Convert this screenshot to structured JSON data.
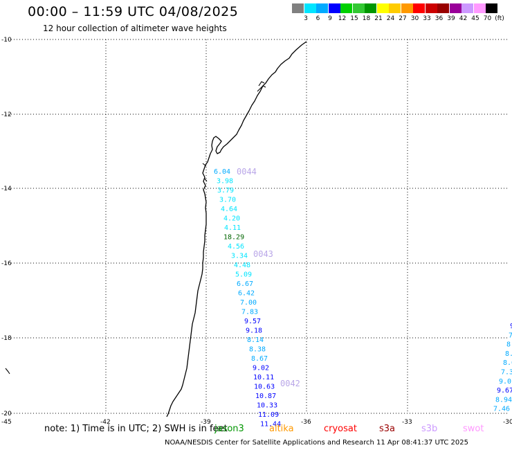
{
  "title": "00:00 – 11:59 UTC 04/08/2025",
  "subtitle": "12 hour collection of altimeter wave heights",
  "colorbar": {
    "colors": [
      "#808080",
      "#00e5ff",
      "#00aaff",
      "#0000ff",
      "#00d000",
      "#32c832",
      "#009600",
      "#ffff00",
      "#ffcc00",
      "#ff9900",
      "#ff0000",
      "#cc0000",
      "#990000",
      "#990099",
      "#cc99ff",
      "#ff99ff",
      "#000000"
    ],
    "labels": [
      "3",
      "6",
      "9",
      "12",
      "15",
      "18",
      "21",
      "24",
      "27",
      "30",
      "33",
      "36",
      "39",
      "42",
      "45",
      "70",
      "(ft)"
    ]
  },
  "axes": {
    "y_ticks": [
      "-10",
      "-12",
      "-14",
      "-16",
      "-18",
      "-20"
    ],
    "x_ticks": [
      "-45",
      "-42",
      "-39",
      "-36",
      "-33",
      "-30"
    ]
  },
  "passes": [
    {
      "label": "0044"
    },
    {
      "label": "0043"
    },
    {
      "label": "0042"
    }
  ],
  "observations": [
    {
      "value": "6.04",
      "color": "#00aaff"
    },
    {
      "value": "3.98",
      "color": "#00e5ff"
    },
    {
      "value": "3.79",
      "color": "#00e5ff"
    },
    {
      "value": "3.70",
      "color": "#00e5ff"
    },
    {
      "value": "4.64",
      "color": "#00e5ff"
    },
    {
      "value": "4.20",
      "color": "#00e5ff"
    },
    {
      "value": "4.11",
      "color": "#00e5ff"
    },
    {
      "value": "18.29",
      "color": "#006400"
    },
    {
      "value": "4.56",
      "color": "#00e5ff"
    },
    {
      "value": "3.34",
      "color": "#00e5ff"
    },
    {
      "value": "4.48",
      "color": "#00e5ff"
    },
    {
      "value": "5.09",
      "color": "#00e5ff"
    },
    {
      "value": "6.67",
      "color": "#00aaff"
    },
    {
      "value": "6.42",
      "color": "#00aaff"
    },
    {
      "value": "7.00",
      "color": "#00aaff"
    },
    {
      "value": "7.83",
      "color": "#00aaff"
    },
    {
      "value": "9.57",
      "color": "#0000ff"
    },
    {
      "value": "9.18",
      "color": "#0000ff"
    },
    {
      "value": "8.14",
      "color": "#00aaff"
    },
    {
      "value": "8.38",
      "color": "#00aaff"
    },
    {
      "value": "8.67",
      "color": "#00aaff"
    },
    {
      "value": "9.02",
      "color": "#0000ff"
    },
    {
      "value": "10.11",
      "color": "#0000ff"
    },
    {
      "value": "10.63",
      "color": "#0000ff"
    },
    {
      "value": "10.87",
      "color": "#0000ff"
    },
    {
      "value": "10.33",
      "color": "#0000ff"
    },
    {
      "value": "11.09",
      "color": "#0000ff"
    },
    {
      "value": "11.44",
      "color": "#0000ff"
    }
  ],
  "edge_observations": [
    {
      "value": "9",
      "color": "#0000ff"
    },
    {
      "value": "7",
      "color": "#00aaff"
    },
    {
      "value": "8.",
      "color": "#00aaff"
    },
    {
      "value": "8.",
      "color": "#00aaff"
    },
    {
      "value": "8.6",
      "color": "#00aaff"
    },
    {
      "value": "7.3",
      "color": "#00aaff"
    },
    {
      "value": "9.0",
      "color": "#00aaff"
    },
    {
      "value": "9.67",
      "color": "#0000ff"
    },
    {
      "value": "8.94",
      "color": "#00aaff"
    },
    {
      "value": "7.46",
      "color": "#00aaff"
    }
  ],
  "note": "note: 1) Time is in UTC; 2) SWH is in feet",
  "satellites": [
    {
      "name": "jason3",
      "color": "#009600"
    },
    {
      "name": "altika",
      "color": "#ff9900"
    },
    {
      "name": "cryosat",
      "color": "#ff0000"
    },
    {
      "name": "s3a",
      "color": "#990000"
    },
    {
      "name": "s3b",
      "color": "#cc99ff"
    },
    {
      "name": "swot",
      "color": "#ff99ff"
    }
  ],
  "credit": "NOAA/NESDIS Center for Satellite Applications and Research    11 Apr 08:41:37 UTC 2025"
}
